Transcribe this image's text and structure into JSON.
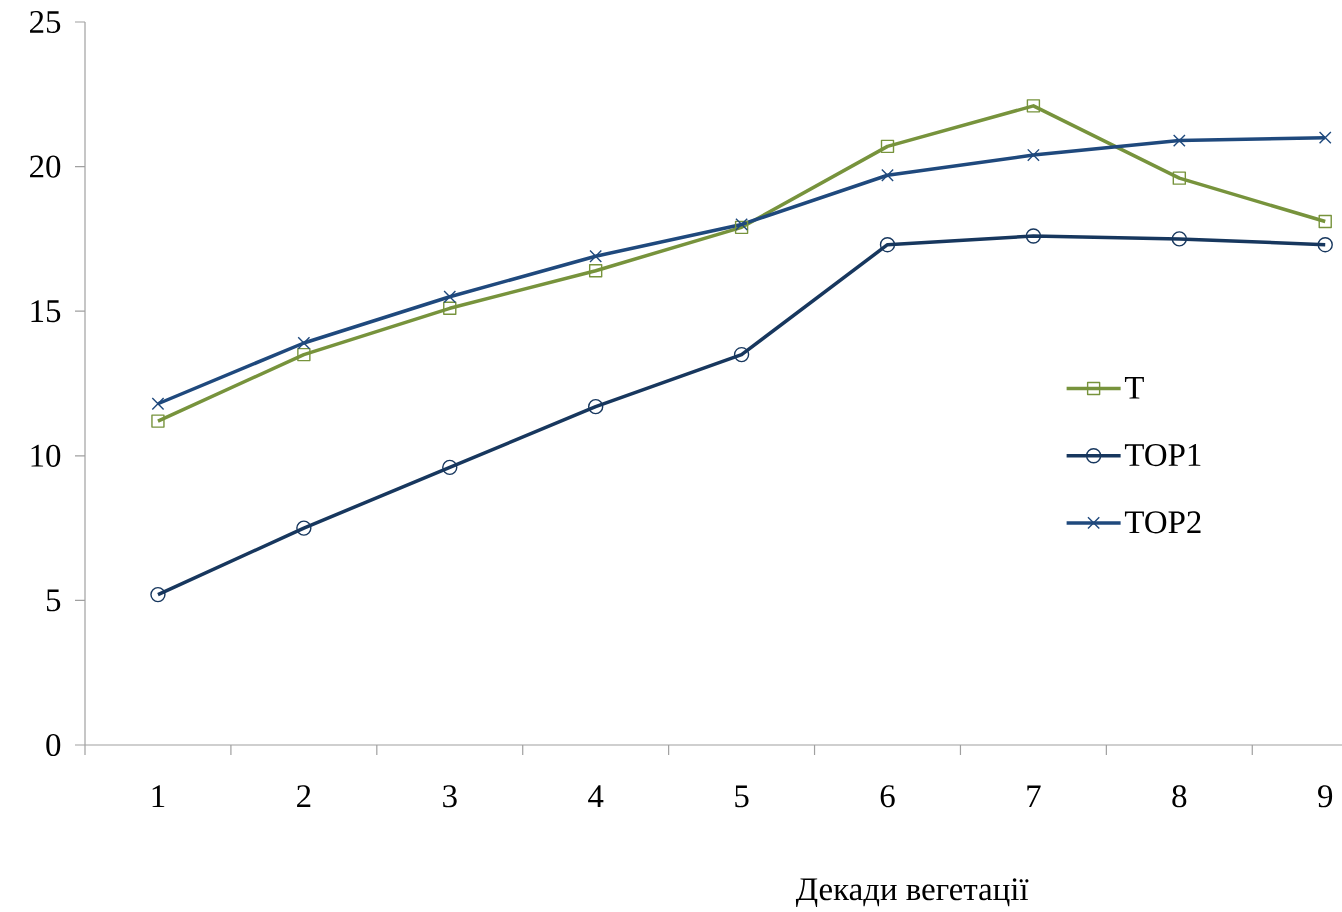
{
  "chart_data": {
    "type": "line",
    "xlabel": "Декади вегетації",
    "categories": [
      "1",
      "2",
      "3",
      "4",
      "5",
      "6",
      "7",
      "8",
      "9"
    ],
    "ylim": [
      0,
      25
    ],
    "yticks": [
      0,
      5,
      10,
      15,
      20,
      25
    ],
    "legend": "right",
    "line_style": "solid",
    "series": [
      {
        "name": "T",
        "color": "#77933c",
        "marker": "square",
        "values": [
          11.2,
          13.5,
          15.1,
          16.4,
          17.9,
          20.7,
          22.1,
          19.6,
          18.1
        ]
      },
      {
        "name": "TOP1",
        "color": "#17375e",
        "marker": "circle",
        "values": [
          5.2,
          7.5,
          9.6,
          11.7,
          13.5,
          17.3,
          17.6,
          17.5,
          17.3
        ]
      },
      {
        "name": "TOP2",
        "color": "#1f497d",
        "marker": "cross",
        "values": [
          11.8,
          13.9,
          15.5,
          16.9,
          18.0,
          19.7,
          20.4,
          20.9,
          21.0
        ]
      }
    ]
  }
}
